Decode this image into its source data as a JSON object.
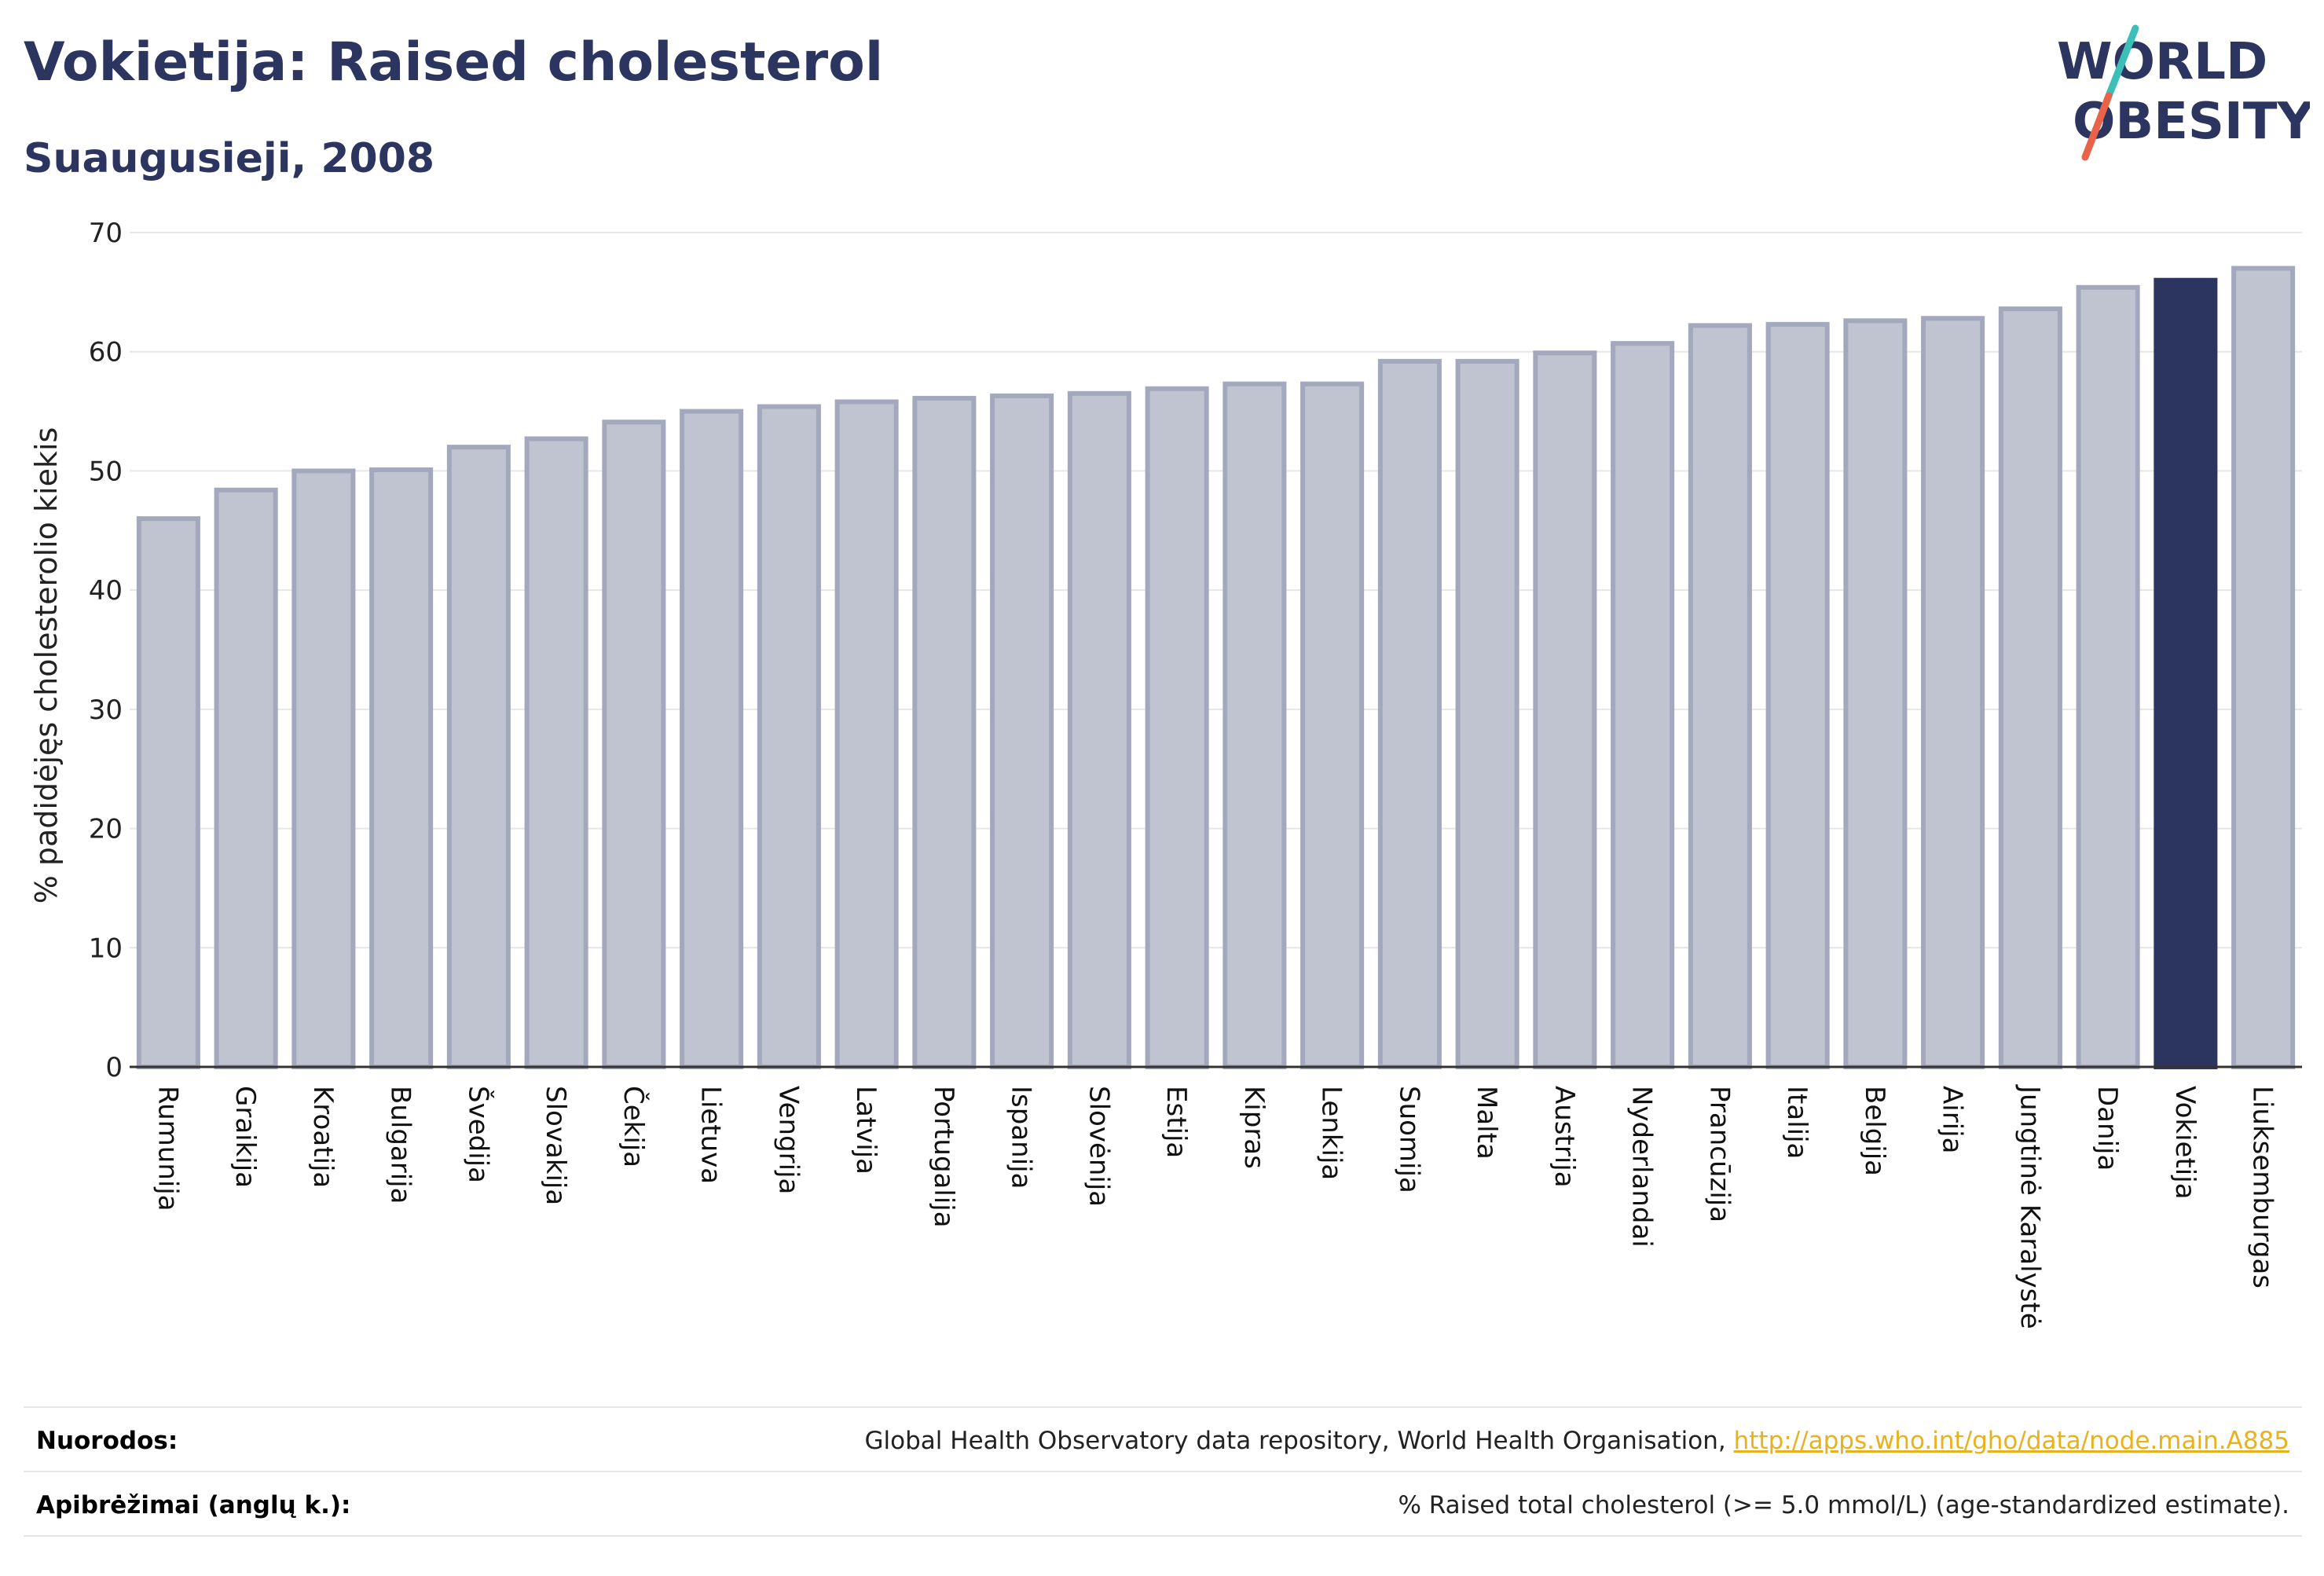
{
  "header": {
    "title": "Vokietija: Raised cholesterol",
    "subtitle": "Suaugusieji, 2008"
  },
  "logo": {
    "line1": "WORLD",
    "line2": "OBESITY",
    "colors": {
      "text": "#2c3560",
      "slash_teal": "#3bbfb8",
      "slash_red": "#e8634a"
    }
  },
  "colors": {
    "bar_fill": "#c0c3d0",
    "bar_stroke": "#a3a8bd",
    "highlight": "#2c3560",
    "grid": "#e6e6ea",
    "axis": "#333333"
  },
  "chart_data": {
    "type": "bar",
    "ylabel": "% padidėjęs cholesterolio kiekis",
    "ylim": [
      0,
      70
    ],
    "yticks": [
      0,
      10,
      20,
      30,
      40,
      50,
      60,
      70
    ],
    "categories": [
      "Rumunija",
      "Graikija",
      "Kroatija",
      "Bulgarija",
      "Švedija",
      "Slovakija",
      "Čekija",
      "Lietuva",
      "Vengrija",
      "Latvija",
      "Portugalija",
      "Ispanija",
      "Slovėnija",
      "Estija",
      "Kipras",
      "Lenkija",
      "Suomija",
      "Malta",
      "Austrija",
      "Nyderlandai",
      "Prancūzija",
      "Italija",
      "Belgija",
      "Airija",
      "Jungtinė Karalystė",
      "Danija",
      "Vokietija",
      "Liuksemburgas"
    ],
    "values": [
      46.0,
      48.4,
      50.0,
      50.1,
      52.0,
      52.7,
      54.1,
      55.0,
      55.4,
      55.8,
      56.1,
      56.3,
      56.5,
      56.9,
      57.3,
      57.3,
      59.2,
      59.2,
      59.9,
      60.7,
      62.2,
      62.3,
      62.6,
      62.8,
      63.6,
      65.4,
      66.0,
      67.0
    ],
    "highlight": "Vokietija",
    "grid": true
  },
  "footer": {
    "sources_label": "Nuorodos:",
    "sources_text": "Global Health Observatory data repository, World Health Organisation, ",
    "sources_link": "http://apps.who.int/gho/data/node.main.A885",
    "definitions_label": "Apibrėžimai (anglų k.):",
    "definitions_text": "% Raised total cholesterol (>= 5.0 mmol/L) (age-standardized estimate)."
  }
}
